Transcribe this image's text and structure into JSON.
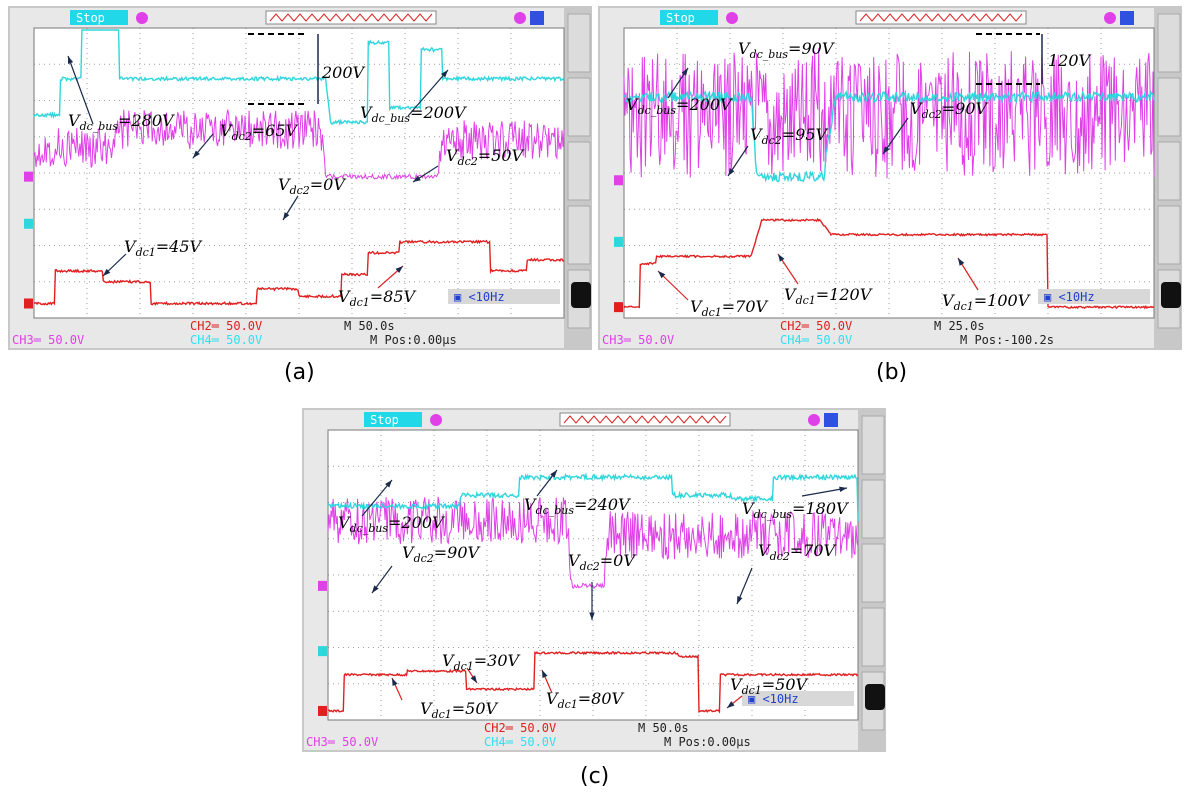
{
  "colors": {
    "ch1_cyan": "#2fd6dc",
    "ch2_red": "#e02020",
    "ch3_magenta": "#e040e8",
    "ch4_label": "#30e0f0",
    "stop_bg": "#20d8e8",
    "screen_bg": "#ffffff",
    "grid": "#9aa0a6",
    "bezel": "#c8c8c8"
  },
  "panels": [
    {
      "id": "a",
      "caption": "(a)",
      "status": "Stop",
      "filter": "<10Hz",
      "ch3_scale": "CH3═ 50.0V",
      "ch2_scale": "CH2═ 50.0V",
      "ch4_scale": "CH4═ 50.0V",
      "timebase": "M 50.0s",
      "mpos": "M Pos:0.00μs",
      "annotations": [
        {
          "main": "V",
          "sub": "dc_bus",
          "rest": "=280V"
        },
        {
          "main": "V",
          "sub": "dc2",
          "rest": "=65V"
        },
        {
          "main": "",
          "sub": "",
          "rest": "200V"
        },
        {
          "main": "V",
          "sub": "dc_bus",
          "rest": "=200V"
        },
        {
          "main": "V",
          "sub": "dc2",
          "rest": "=0V"
        },
        {
          "main": "V",
          "sub": "dc2",
          "rest": "=50V"
        },
        {
          "main": "V",
          "sub": "dc1",
          "rest": "=45V"
        },
        {
          "main": "V",
          "sub": "dc1",
          "rest": "=85V"
        }
      ]
    },
    {
      "id": "b",
      "caption": "(b)",
      "status": "Stop",
      "filter": "<10Hz",
      "ch3_scale": "CH3═ 50.0V",
      "ch2_scale": "CH2═ 50.0V",
      "ch4_scale": "CH4═ 50.0V",
      "timebase": "M 25.0s",
      "mpos": "M Pos:-100.2s",
      "annotations": [
        {
          "main": "V",
          "sub": "dc_bus",
          "rest": "=90V"
        },
        {
          "main": "",
          "sub": "",
          "rest": "120V"
        },
        {
          "main": "V",
          "sub": "dc_bus",
          "rest": "=200V"
        },
        {
          "main": "V",
          "sub": "dc2",
          "rest": "=95V"
        },
        {
          "main": "V",
          "sub": "dc2",
          "rest": "=90V"
        },
        {
          "main": "V",
          "sub": "dc1",
          "rest": "=70V"
        },
        {
          "main": "V",
          "sub": "dc1",
          "rest": "=120V"
        },
        {
          "main": "V",
          "sub": "dc1",
          "rest": "=100V"
        }
      ]
    },
    {
      "id": "c",
      "caption": "(c)",
      "status": "Stop",
      "filter": "<10Hz",
      "ch3_scale": "CH3═ 50.0V",
      "ch2_scale": "CH2═ 50.0V",
      "ch4_scale": "CH4═ 50.0V",
      "timebase": "M 50.0s",
      "mpos": "M Pos:0.00μs",
      "annotations": [
        {
          "main": "V",
          "sub": "dc_bus",
          "rest": "=200V"
        },
        {
          "main": "V",
          "sub": "dc_bus",
          "rest": "=240V"
        },
        {
          "main": "V",
          "sub": "dc_bus",
          "rest": "=180V"
        },
        {
          "main": "V",
          "sub": "dc2",
          "rest": "=90V"
        },
        {
          "main": "V",
          "sub": "dc2",
          "rest": "=0V"
        },
        {
          "main": "V",
          "sub": "dc2",
          "rest": "=70V"
        },
        {
          "main": "V",
          "sub": "dc1",
          "rest": "=30V"
        },
        {
          "main": "V",
          "sub": "dc1",
          "rest": "=80V"
        },
        {
          "main": "V",
          "sub": "dc1",
          "rest": "=50V"
        },
        {
          "main": "V",
          "sub": "dc1",
          "rest": "=50V"
        }
      ]
    }
  ],
  "chart_data": [
    {
      "type": "line",
      "panel": "a",
      "y_scale_per_div": "50.0V",
      "time_per_div": "50.0s",
      "series": [
        {
          "name": "Vdc_bus",
          "channel": "CH4",
          "t_div": [
            0.0,
            0.5,
            0.9,
            1.3,
            1.6,
            5.5,
            5.6,
            6.3,
            6.7,
            7.3,
            7.7,
            10
          ],
          "values": [
            150,
            200,
            280,
            280,
            200,
            200,
            140,
            250,
            160,
            240,
            200,
            200
          ]
        },
        {
          "name": "Vdc2",
          "channel": "CH3",
          "t_div": [
            0.0,
            1.5,
            5.4,
            5.5,
            7.6,
            7.7,
            10
          ],
          "values": [
            40,
            65,
            65,
            0,
            0,
            50,
            50
          ]
        },
        {
          "name": "Vdc1",
          "channel": "CH2",
          "t_div": [
            0.0,
            0.4,
            1.3,
            2.2,
            3.2,
            4.2,
            5.0,
            5.8,
            6.3,
            6.9,
            7.9,
            8.6,
            9.3,
            10
          ],
          "values": [
            0,
            45,
            30,
            0,
            0,
            20,
            10,
            40,
            70,
            85,
            85,
            45,
            60,
            60
          ]
        }
      ]
    },
    {
      "type": "line",
      "panel": "b",
      "y_scale_per_div": "50.0V",
      "time_per_div": "25.0s",
      "series": [
        {
          "name": "Vdc_bus",
          "channel": "CH4",
          "t_div": [
            0.0,
            2.4,
            2.5,
            3.8,
            4.0,
            10
          ],
          "values": [
            200,
            200,
            90,
            120,
            200,
            200
          ]
        },
        {
          "name": "Vdc2",
          "channel": "CH3",
          "t_div": [
            0.0,
            2.4,
            2.5,
            3.8,
            3.9,
            8.1,
            8.3,
            10
          ],
          "values": [
            90,
            90,
            95,
            95,
            90,
            90,
            90,
            90
          ]
        },
        {
          "name": "Vdc1",
          "channel": "CH2",
          "t_div": [
            0.0,
            0.3,
            0.6,
            2.4,
            2.6,
            3.7,
            3.9,
            7.6,
            8.0,
            10
          ],
          "values": [
            0,
            60,
            70,
            70,
            120,
            120,
            100,
            100,
            0,
            0
          ]
        }
      ]
    },
    {
      "type": "line",
      "panel": "c",
      "y_scale_per_div": "50.0V",
      "time_per_div": "50.0s",
      "series": [
        {
          "name": "Vdc_bus",
          "channel": "CH4",
          "t_div": [
            0.0,
            2.5,
            3.6,
            5.4,
            6.5,
            7.6,
            8.4,
            10
          ],
          "values": [
            200,
            215,
            240,
            240,
            215,
            210,
            240,
            180
          ]
        },
        {
          "name": "Vdc2",
          "channel": "CH3",
          "t_div": [
            0.0,
            4.5,
            4.6,
            5.2,
            5.3,
            10
          ],
          "values": [
            90,
            90,
            0,
            0,
            70,
            70
          ]
        },
        {
          "name": "Vdc1",
          "channel": "CH2",
          "t_div": [
            0.0,
            0.3,
            1.5,
            2.6,
            3.5,
            3.9,
            6.6,
            7.0,
            7.4,
            10
          ],
          "values": [
            0,
            50,
            55,
            30,
            30,
            80,
            75,
            0,
            50,
            50
          ]
        }
      ]
    }
  ]
}
